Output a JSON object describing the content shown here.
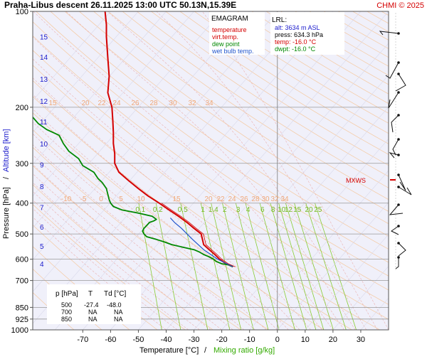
{
  "header": {
    "title": "Praha-Libus  descent  26.11.2025 13:00 UTC  50.13N,15.39E",
    "credit": "CHMI © 2025"
  },
  "legend": {
    "title": "EMAGRAM",
    "items": [
      {
        "label": "temperature",
        "color": "#d40000"
      },
      {
        "label": "virt.temp.",
        "color": "#d40000"
      },
      {
        "label": "dew point",
        "color": "#008800"
      },
      {
        "label": "wet bulb temp.",
        "color": "#2255cc"
      }
    ]
  },
  "lrl": {
    "title": "LRL:",
    "lines": [
      {
        "text": "alt: 3634 m ASL",
        "color": "#1a1acc"
      },
      {
        "text": "press: 634.3 hPa",
        "color": "#000000"
      },
      {
        "text": "temp: -16.0 °C",
        "color": "#d40000"
      },
      {
        "text": "dwpt: -16.0 °C",
        "color": "#008800"
      }
    ]
  },
  "table": {
    "headers": [
      "p [hPa]",
      "T",
      "Td [°C]"
    ],
    "rows": [
      [
        "500",
        "-27.4",
        "-48.0"
      ],
      [
        "700",
        "NA",
        "NA"
      ],
      [
        "850",
        "NA",
        "NA"
      ]
    ]
  },
  "mxws_label": "MXWS",
  "chart_data": {
    "type": "line",
    "diagram": "emagram",
    "xlabel": "Temperature [°C]",
    "xlabel_sep": "/",
    "xlabel_secondary": "Mixing ratio [g/kg]",
    "ylabel": "Pressure [hPa]",
    "ylabel_sep": "/",
    "ylabel_secondary": "Altitude [km]",
    "xlim": [
      -88,
      40
    ],
    "ylim": [
      1000,
      100
    ],
    "y_scale": "log",
    "x_ticks": [
      -70,
      -60,
      -50,
      -40,
      -30,
      -20,
      -10,
      0,
      10,
      20,
      30
    ],
    "y_ticks": [
      100,
      200,
      300,
      400,
      500,
      600,
      700,
      850,
      925,
      1000
    ],
    "altitude_labels_km": [
      {
        "km": "4",
        "p": 620
      },
      {
        "km": "5",
        "p": 545
      },
      {
        "km": "6",
        "p": 475
      },
      {
        "km": "7",
        "p": 412
      },
      {
        "km": "8",
        "p": 354
      },
      {
        "km": "9",
        "p": 303
      },
      {
        "km": "10",
        "p": 260
      },
      {
        "km": "11",
        "p": 222
      },
      {
        "km": "12",
        "p": 191
      },
      {
        "km": "13",
        "p": 163
      },
      {
        "km": "14",
        "p": 139
      },
      {
        "km": "15",
        "p": 120
      }
    ],
    "mixing_ratio_labels": [
      "0.1",
      "0.2",
      "0.5",
      "1",
      "1.4",
      "2",
      "3",
      "4",
      "6",
      "8",
      "10",
      "12",
      "15",
      "20",
      "25"
    ],
    "mixing_ratio_values": [
      0.1,
      0.2,
      0.5,
      1,
      1.4,
      2,
      3,
      4,
      6,
      8,
      10,
      12,
      15,
      20,
      25
    ],
    "adiabat_labels_upper": [
      "15",
      "20",
      "22",
      "24",
      "26",
      "28",
      "30",
      "32",
      "34"
    ],
    "adiabat_labels_lower": [
      "-10",
      "-5",
      "0",
      "5",
      "10",
      "15",
      "20",
      "22",
      "24",
      "26",
      "28",
      "30",
      "32",
      "34"
    ],
    "series": [
      {
        "name": "temperature",
        "color": "#d40000",
        "points": [
          [
            634,
            -16.0
          ],
          [
            620,
            -18.5
          ],
          [
            600,
            -20.8
          ],
          [
            580,
            -22.5
          ],
          [
            560,
            -24.5
          ],
          [
            540,
            -26.5
          ],
          [
            500,
            -27.4
          ],
          [
            480,
            -30
          ],
          [
            460,
            -32.5
          ],
          [
            440,
            -35.5
          ],
          [
            420,
            -39
          ],
          [
            400,
            -42.5
          ],
          [
            380,
            -46.5
          ],
          [
            360,
            -50
          ],
          [
            340,
            -53.5
          ],
          [
            320,
            -57
          ],
          [
            300,
            -58.5
          ],
          [
            280,
            -58.5
          ],
          [
            260,
            -59
          ],
          [
            240,
            -59
          ],
          [
            220,
            -59.2
          ],
          [
            200,
            -59.5
          ],
          [
            180,
            -61
          ],
          [
            160,
            -60.5
          ],
          [
            140,
            -61
          ],
          [
            120,
            -61.5
          ],
          [
            110,
            -61.5
          ],
          [
            100,
            -62
          ]
        ]
      },
      {
        "name": "dew point",
        "color": "#008800",
        "points": [
          [
            634,
            -16.0
          ],
          [
            625,
            -17.5
          ],
          [
            620,
            -20
          ],
          [
            610,
            -22
          ],
          [
            600,
            -23
          ],
          [
            590,
            -24.5
          ],
          [
            580,
            -26.5
          ],
          [
            570,
            -28
          ],
          [
            560,
            -30
          ],
          [
            550,
            -34
          ],
          [
            540,
            -38
          ],
          [
            530,
            -40.5
          ],
          [
            520,
            -43.5
          ],
          [
            510,
            -47
          ],
          [
            500,
            -48
          ],
          [
            490,
            -48.5
          ],
          [
            480,
            -48
          ],
          [
            470,
            -47
          ],
          [
            460,
            -46
          ],
          [
            455,
            -44.5
          ],
          [
            450,
            -43.5
          ],
          [
            440,
            -45
          ],
          [
            430,
            -50
          ],
          [
            420,
            -56
          ],
          [
            410,
            -59
          ],
          [
            400,
            -60
          ],
          [
            390,
            -60.5
          ],
          [
            375,
            -61
          ],
          [
            360,
            -61.5
          ],
          [
            345,
            -63
          ],
          [
            335,
            -64.5
          ],
          [
            320,
            -66
          ],
          [
            305,
            -70
          ],
          [
            290,
            -71.5
          ],
          [
            275,
            -75
          ],
          [
            260,
            -77
          ],
          [
            245,
            -78.5
          ],
          [
            235,
            -83
          ],
          [
            225,
            -86
          ],
          [
            215,
            -88
          ]
        ]
      },
      {
        "name": "wet bulb temp.",
        "color": "#2255cc",
        "points": [
          [
            634,
            -16.0
          ],
          [
            600,
            -21.5
          ],
          [
            560,
            -26.5
          ],
          [
            520,
            -30.5
          ],
          [
            500,
            -32.5
          ],
          [
            480,
            -34.5
          ],
          [
            460,
            -37
          ],
          [
            445,
            -38.5
          ]
        ]
      }
    ]
  }
}
